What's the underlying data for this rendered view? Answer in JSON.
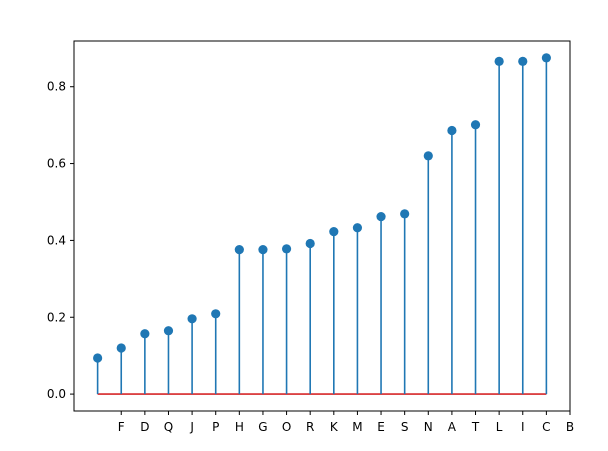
{
  "chart_data": {
    "type": "stem",
    "title": "",
    "xlabel": "",
    "ylabel": "",
    "categories": [
      "",
      "F",
      "D",
      "Q",
      "J",
      "P",
      "H",
      "G",
      "O",
      "R",
      "K",
      "M",
      "E",
      "S",
      "N",
      "A",
      "T",
      "L",
      "I",
      "C"
    ],
    "values": [
      0.094,
      0.12,
      0.157,
      0.165,
      0.196,
      0.209,
      0.376,
      0.376,
      0.378,
      0.392,
      0.423,
      0.433,
      0.462,
      0.469,
      0.62,
      0.686,
      0.701,
      0.866,
      0.866,
      0.875
    ],
    "extra_x_tick_labels": [
      "B"
    ],
    "ylim": [
      -0.044,
      0.919
    ],
    "yticks": [
      0.0,
      0.2,
      0.4,
      0.6,
      0.8
    ],
    "ytick_labels": [
      "0.0",
      "0.2",
      "0.4",
      "0.6",
      "0.8"
    ],
    "baseline": 0.0,
    "grid": false,
    "colors": {
      "stem": "#1f77b4",
      "marker": "#1f77b4",
      "baseline": "#d62728",
      "axes": "#000000"
    }
  }
}
